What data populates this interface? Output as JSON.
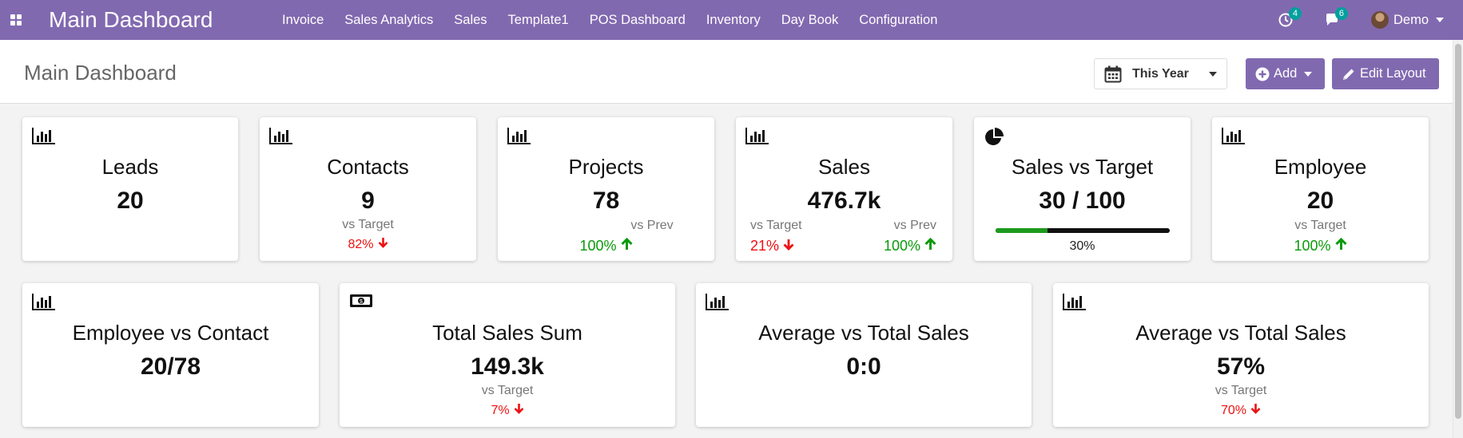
{
  "navbar": {
    "brand": "Main Dashboard",
    "menu": [
      "Invoice",
      "Sales Analytics",
      "Sales",
      "Template1",
      "POS Dashboard",
      "Inventory",
      "Day Book",
      "Configuration"
    ],
    "activity_count": "4",
    "message_count": "6",
    "user": "Demo",
    "color": "#8169b0"
  },
  "control": {
    "title": "Main Dashboard",
    "period": "This Year",
    "add_label": "Add",
    "edit_label": "Edit Layout"
  },
  "cards": {
    "leads": {
      "title": "Leads",
      "value": "20",
      "icon": "bar-chart-icon"
    },
    "contacts": {
      "title": "Contacts",
      "value": "9",
      "sub_label": "vs Target",
      "sub_value": "82%",
      "trend": "down"
    },
    "projects": {
      "title": "Projects",
      "value": "78",
      "sub_label": "vs Prev",
      "sub_value": "100%",
      "trend": "up"
    },
    "sales": {
      "title": "Sales",
      "value": "476.7k",
      "target_label": "vs Target",
      "target_value": "21%",
      "target_trend": "down",
      "prev_label": "vs Prev",
      "prev_value": "100%",
      "prev_trend": "up"
    },
    "sales_vs_target": {
      "title": "Sales vs Target",
      "value": "30 / 100",
      "progress": 0.3,
      "progress_label": "30%",
      "icon": "pie-chart-icon"
    },
    "employee": {
      "title": "Employee",
      "value": "20",
      "sub_label": "vs Target",
      "sub_value": "100%",
      "trend": "up"
    },
    "employee_vs_contact": {
      "title": "Employee vs Contact",
      "value": "20/78"
    },
    "total_sales_sum": {
      "title": "Total Sales Sum",
      "value": "149.3k",
      "sub_label": "vs Target",
      "sub_value": "7%",
      "trend": "down",
      "icon": "money-icon"
    },
    "avg_vs_total_1": {
      "title": "Average vs Total Sales",
      "value": "0:0"
    },
    "avg_vs_total_2": {
      "title": "Average vs Total Sales",
      "value": "57%",
      "sub_label": "vs Target",
      "sub_value": "70%",
      "trend": "down"
    }
  }
}
